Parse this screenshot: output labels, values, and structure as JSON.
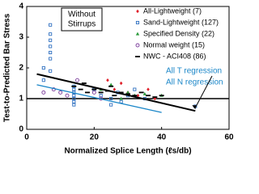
{
  "chart_data": {
    "type": "scatter",
    "ylabel": "Test-to-Predicted Bar Stress",
    "xlabel": "Normalized Splice Length (ℓs/db)",
    "box_text": [
      "Without",
      "Stirrups"
    ],
    "xlim": [
      0,
      60
    ],
    "xticks": [
      0,
      20,
      40,
      60
    ],
    "ylim": [
      0,
      4
    ],
    "yticks": [
      0,
      1,
      2,
      3,
      4
    ],
    "reference_y": 1,
    "series": [
      {
        "name": "All-Lightweight (7)",
        "color": "#e0202a",
        "marker": "diamond",
        "x": [
          24,
          26,
          28,
          30,
          33,
          36,
          38
        ],
        "values": [
          1.6,
          1.3,
          1.5,
          1.2,
          1.1,
          1.3,
          1.0
        ]
      },
      {
        "name": "Sand-Lightweight (127)",
        "color": "#2e6fc0",
        "marker": "square",
        "x": [
          7,
          7,
          7,
          7,
          7,
          7,
          5,
          7,
          5,
          14,
          14,
          14,
          14,
          14,
          14,
          14,
          20,
          22,
          25,
          25,
          27,
          28,
          30,
          32,
          35,
          50
        ],
        "values": [
          3.4,
          3.1,
          2.9,
          2.7,
          2.5,
          2.3,
          2.0,
          1.9,
          1.6,
          1.4,
          1.3,
          1.2,
          1.1,
          1.0,
          0.9,
          0.8,
          1.3,
          1.1,
          1.0,
          0.8,
          1.2,
          0.9,
          1.1,
          1.3,
          1.0,
          0.75
        ]
      },
      {
        "name": "Specified Density (22)",
        "color": "#2a9a3a",
        "marker": "triangle",
        "x": [
          22,
          25,
          28,
          30,
          32,
          35,
          40
        ],
        "values": [
          1.3,
          1.45,
          1.0,
          1.2,
          1.1,
          1.15,
          1.1
        ]
      },
      {
        "name": "Normal weight (15)",
        "color": "#7a3a9a",
        "marker": "circle",
        "x": [
          5,
          8,
          10,
          12,
          15,
          20,
          22
        ],
        "values": [
          1.2,
          1.3,
          1.2,
          1.1,
          1.6,
          1.2,
          1.0
        ]
      },
      {
        "name": "NWC - ACI408 (86)",
        "color": "#000000",
        "marker": "dash",
        "x": [
          14,
          16,
          17,
          18,
          20,
          22,
          24,
          25,
          26,
          28,
          30,
          32,
          34,
          36,
          38,
          40
        ],
        "values": [
          1.4,
          1.3,
          1.5,
          1.2,
          1.3,
          1.2,
          1.25,
          1.4,
          1.1,
          1.2,
          1.15,
          1.1,
          1.2,
          1.1,
          1.05,
          1.1
        ]
      }
    ],
    "lines": [
      {
        "name": "All T regression",
        "color": "#000000",
        "width": 2,
        "x": [
          3,
          50
        ],
        "values": [
          1.8,
          0.6
        ]
      },
      {
        "name": "All N regression",
        "color": "#1a86c8",
        "width": 1.3,
        "x": [
          3,
          40
        ],
        "values": [
          1.45,
          0.55
        ]
      }
    ]
  }
}
